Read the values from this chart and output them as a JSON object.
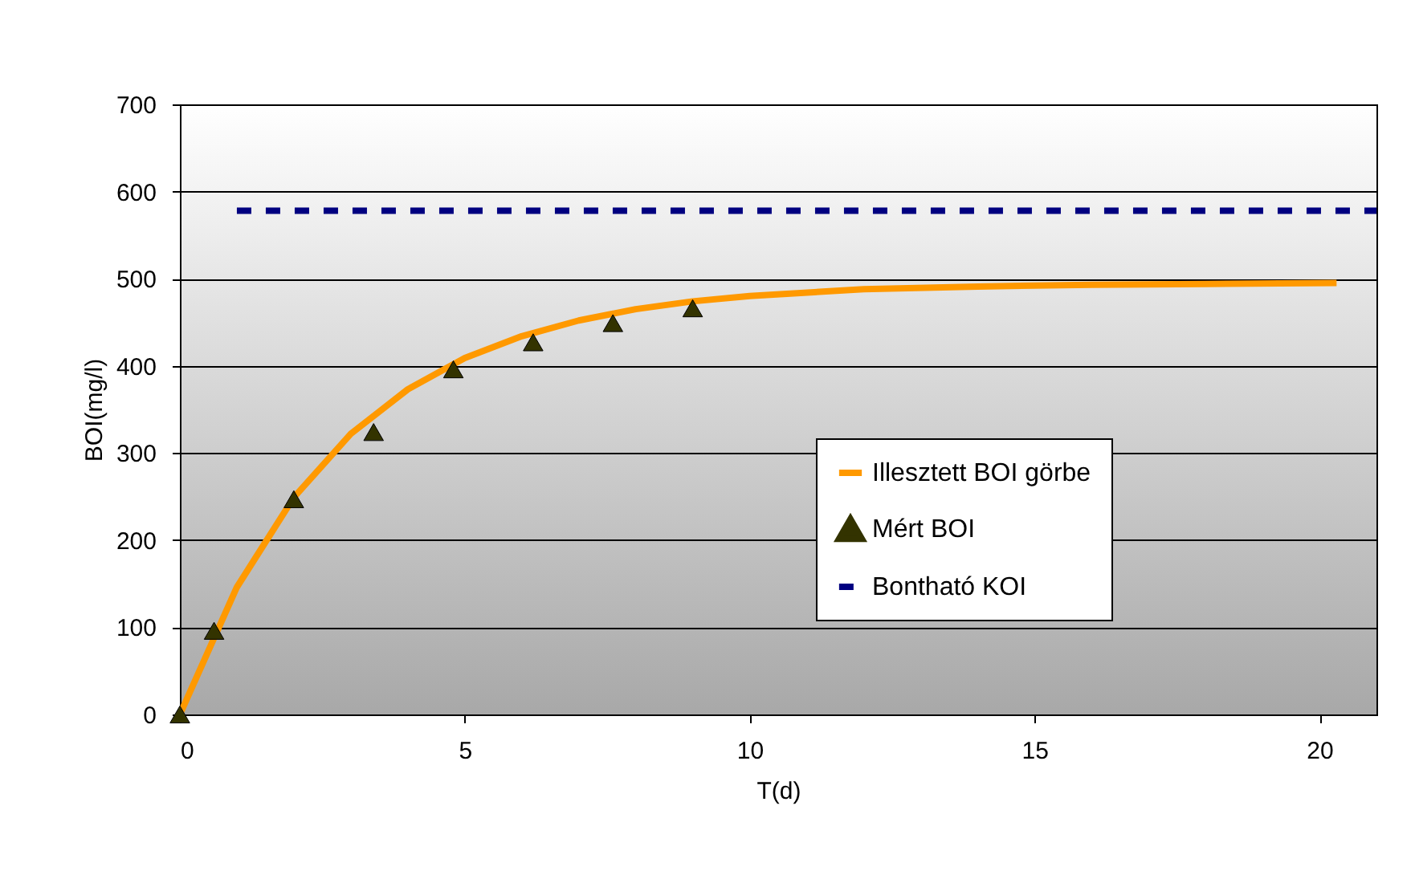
{
  "chart_data": {
    "type": "line",
    "xlabel": "T(d)",
    "ylabel": "BOI(mg/l)",
    "xlim": [
      0,
      21
    ],
    "xticks": [
      0,
      5,
      10,
      15,
      20
    ],
    "ylim": [
      0,
      700
    ],
    "yticks": [
      0,
      100,
      200,
      300,
      400,
      500,
      600,
      700
    ],
    "grid": "y",
    "legend": "bottom right",
    "series": [
      {
        "name": "Illesztett BOI görbe",
        "color": "#ff9900",
        "marker": "none",
        "line_style": "solid",
        "x": [
          0,
          1,
          2,
          3,
          4,
          5,
          6,
          7,
          8,
          9,
          10,
          12,
          14,
          16,
          18,
          20.3
        ],
        "values": [
          0,
          146,
          249,
          322,
          373,
          409,
          434,
          452,
          465,
          474,
          480,
          488,
          491,
          493,
          494,
          495
        ]
      },
      {
        "name": "Mért BOI",
        "type": "scatter",
        "color": "#333300",
        "marker": "triangle",
        "x": [
          0,
          0.6,
          2,
          3.4,
          4.8,
          6.2,
          7.6,
          9
        ],
        "values": [
          0,
          96,
          247,
          324,
          396,
          427,
          449,
          466
        ]
      },
      {
        "name": "Bontható KOI",
        "color": "#000080",
        "marker": "none",
        "line_style": "dashed",
        "x": [
          1,
          21
        ],
        "values": [
          578,
          578
        ]
      }
    ]
  }
}
